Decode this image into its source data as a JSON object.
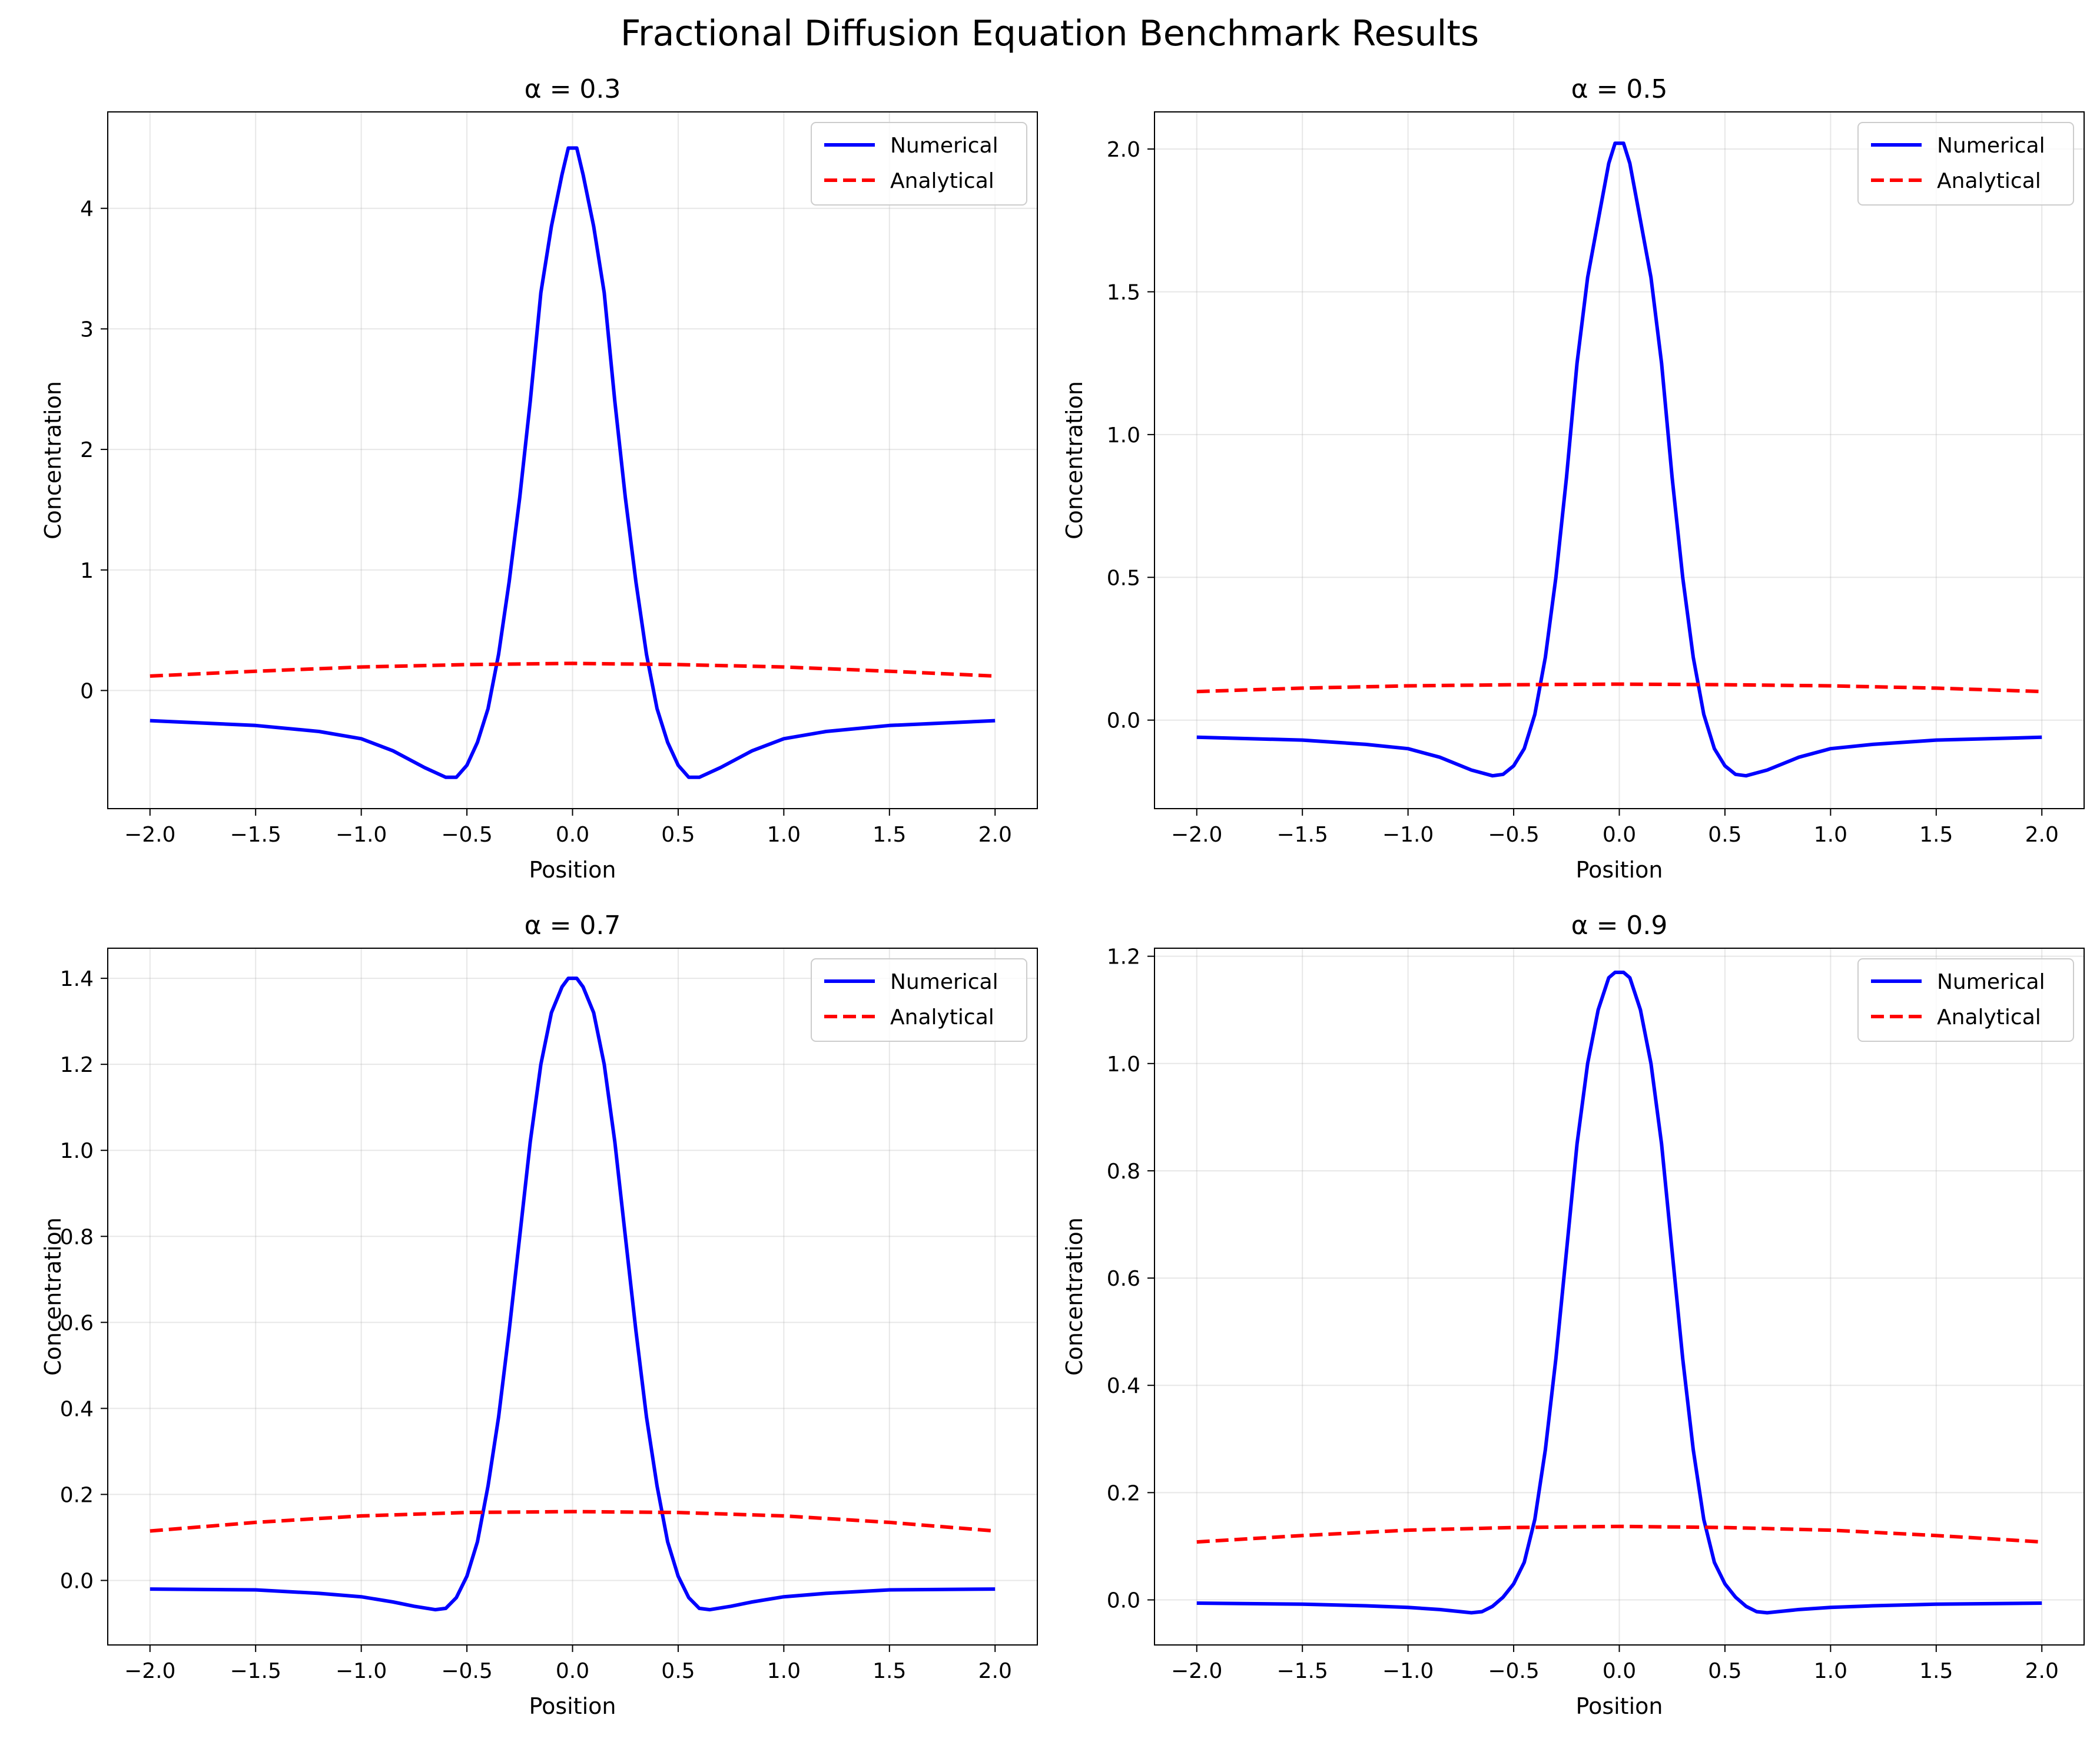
{
  "title": "Fractional Diffusion Equation Benchmark Results",
  "chart_data": [
    {
      "type": "line",
      "title": "α = 0.3",
      "xlabel": "Position",
      "ylabel": "Concentration",
      "xlim": [
        -2.2,
        2.2
      ],
      "ylim": [
        -0.98,
        4.8
      ],
      "xticks": [
        -2.0,
        -1.5,
        -1.0,
        -0.5,
        0.0,
        0.5,
        1.0,
        1.5,
        2.0
      ],
      "xtick_labels": [
        "−2.0",
        "−1.5",
        "−1.0",
        "−0.5",
        "0.0",
        "0.5",
        "1.0",
        "1.5",
        "2.0"
      ],
      "yticks": [
        0,
        1,
        2,
        3,
        4
      ],
      "ytick_labels": [
        "0",
        "1",
        "2",
        "3",
        "4"
      ],
      "grid": true,
      "legend": "top-right",
      "series": [
        {
          "name": "Numerical",
          "color": "#0000ff",
          "style": "solid",
          "x": [
            -2.0,
            -1.5,
            -1.2,
            -1.0,
            -0.85,
            -0.7,
            -0.6,
            -0.55,
            -0.5,
            -0.45,
            -0.4,
            -0.35,
            -0.3,
            -0.25,
            -0.2,
            -0.15,
            -0.1,
            -0.05,
            -0.02,
            0.02,
            0.05,
            0.1,
            0.15,
            0.2,
            0.25,
            0.3,
            0.35,
            0.4,
            0.45,
            0.5,
            0.55,
            0.6,
            0.7,
            0.85,
            1.0,
            1.2,
            1.5,
            2.0
          ],
          "y": [
            -0.25,
            -0.29,
            -0.34,
            -0.4,
            -0.5,
            -0.64,
            -0.72,
            -0.72,
            -0.62,
            -0.43,
            -0.15,
            0.3,
            0.9,
            1.6,
            2.4,
            3.3,
            3.85,
            4.28,
            4.5,
            4.5,
            4.28,
            3.85,
            3.3,
            2.4,
            1.6,
            0.9,
            0.3,
            -0.15,
            -0.43,
            -0.62,
            -0.72,
            -0.72,
            -0.64,
            -0.5,
            -0.4,
            -0.34,
            -0.29,
            -0.25
          ]
        },
        {
          "name": "Analytical",
          "color": "#ff0000",
          "style": "dashed",
          "x": [
            -2.0,
            -1.5,
            -1.0,
            -0.5,
            0.0,
            0.5,
            1.0,
            1.5,
            2.0
          ],
          "y": [
            0.12,
            0.16,
            0.195,
            0.215,
            0.225,
            0.215,
            0.195,
            0.16,
            0.12
          ]
        }
      ]
    },
    {
      "type": "line",
      "title": "α = 0.5",
      "xlabel": "Position",
      "ylabel": "Concentration",
      "xlim": [
        -2.2,
        2.2
      ],
      "ylim": [
        -0.31,
        2.13
      ],
      "xticks": [
        -2.0,
        -1.5,
        -1.0,
        -0.5,
        0.0,
        0.5,
        1.0,
        1.5,
        2.0
      ],
      "xtick_labels": [
        "−2.0",
        "−1.5",
        "−1.0",
        "−0.5",
        "0.0",
        "0.5",
        "1.0",
        "1.5",
        "2.0"
      ],
      "yticks": [
        0.0,
        0.5,
        1.0,
        1.5,
        2.0
      ],
      "ytick_labels": [
        "0.0",
        "0.5",
        "1.0",
        "1.5",
        "2.0"
      ],
      "grid": true,
      "legend": "top-right",
      "series": [
        {
          "name": "Numerical",
          "color": "#0000ff",
          "style": "solid",
          "x": [
            -2.0,
            -1.5,
            -1.2,
            -1.0,
            -0.85,
            -0.7,
            -0.6,
            -0.55,
            -0.5,
            -0.45,
            -0.4,
            -0.35,
            -0.3,
            -0.25,
            -0.2,
            -0.15,
            -0.1,
            -0.05,
            -0.02,
            0.02,
            0.05,
            0.1,
            0.15,
            0.2,
            0.25,
            0.3,
            0.35,
            0.4,
            0.45,
            0.5,
            0.55,
            0.6,
            0.7,
            0.85,
            1.0,
            1.2,
            1.5,
            2.0
          ],
          "y": [
            -0.06,
            -0.07,
            -0.085,
            -0.1,
            -0.13,
            -0.175,
            -0.195,
            -0.19,
            -0.16,
            -0.1,
            0.02,
            0.22,
            0.5,
            0.85,
            1.25,
            1.55,
            1.75,
            1.95,
            2.02,
            2.02,
            1.95,
            1.75,
            1.55,
            1.25,
            0.85,
            0.5,
            0.22,
            0.02,
            -0.1,
            -0.16,
            -0.19,
            -0.195,
            -0.175,
            -0.13,
            -0.1,
            -0.085,
            -0.07,
            -0.06
          ]
        },
        {
          "name": "Analytical",
          "color": "#ff0000",
          "style": "dashed",
          "x": [
            -2.0,
            -1.5,
            -1.0,
            -0.5,
            0.0,
            0.5,
            1.0,
            1.5,
            2.0
          ],
          "y": [
            0.1,
            0.112,
            0.12,
            0.124,
            0.126,
            0.124,
            0.12,
            0.112,
            0.1
          ]
        }
      ]
    },
    {
      "type": "line",
      "title": "α = 0.7",
      "xlabel": "Position",
      "ylabel": "Concentration",
      "xlim": [
        -2.2,
        2.2
      ],
      "ylim": [
        -0.15,
        1.47
      ],
      "xticks": [
        -2.0,
        -1.5,
        -1.0,
        -0.5,
        0.0,
        0.5,
        1.0,
        1.5,
        2.0
      ],
      "xtick_labels": [
        "−2.0",
        "−1.5",
        "−1.0",
        "−0.5",
        "0.0",
        "0.5",
        "1.0",
        "1.5",
        "2.0"
      ],
      "yticks": [
        0.0,
        0.2,
        0.4,
        0.6,
        0.8,
        1.0,
        1.2,
        1.4
      ],
      "ytick_labels": [
        "0.0",
        "0.2",
        "0.4",
        "0.6",
        "0.8",
        "1.0",
        "1.2",
        "1.4"
      ],
      "grid": true,
      "legend": "top-right",
      "series": [
        {
          "name": "Numerical",
          "color": "#0000ff",
          "style": "solid",
          "x": [
            -2.0,
            -1.5,
            -1.2,
            -1.0,
            -0.85,
            -0.75,
            -0.65,
            -0.6,
            -0.55,
            -0.5,
            -0.45,
            -0.4,
            -0.35,
            -0.3,
            -0.25,
            -0.2,
            -0.15,
            -0.1,
            -0.05,
            -0.02,
            0.02,
            0.05,
            0.1,
            0.15,
            0.2,
            0.25,
            0.3,
            0.35,
            0.4,
            0.45,
            0.5,
            0.55,
            0.6,
            0.65,
            0.75,
            0.85,
            1.0,
            1.2,
            1.5,
            2.0
          ],
          "y": [
            -0.02,
            -0.022,
            -0.03,
            -0.038,
            -0.05,
            -0.06,
            -0.068,
            -0.065,
            -0.04,
            0.01,
            0.09,
            0.22,
            0.38,
            0.58,
            0.8,
            1.02,
            1.2,
            1.32,
            1.38,
            1.4,
            1.4,
            1.38,
            1.32,
            1.2,
            1.02,
            0.8,
            0.58,
            0.38,
            0.22,
            0.09,
            0.01,
            -0.04,
            -0.065,
            -0.068,
            -0.06,
            -0.05,
            -0.038,
            -0.03,
            -0.022,
            -0.02
          ]
        },
        {
          "name": "Analytical",
          "color": "#ff0000",
          "style": "dashed",
          "x": [
            -2.0,
            -1.5,
            -1.0,
            -0.5,
            0.0,
            0.5,
            1.0,
            1.5,
            2.0
          ],
          "y": [
            0.115,
            0.135,
            0.15,
            0.158,
            0.16,
            0.158,
            0.15,
            0.135,
            0.115
          ]
        }
      ]
    },
    {
      "type": "line",
      "title": "α = 0.9",
      "xlabel": "Position",
      "ylabel": "Concentration",
      "xlim": [
        -2.2,
        2.2
      ],
      "ylim": [
        -0.084,
        1.215
      ],
      "xticks": [
        -2.0,
        -1.5,
        -1.0,
        -0.5,
        0.0,
        0.5,
        1.0,
        1.5,
        2.0
      ],
      "xtick_labels": [
        "−2.0",
        "−1.5",
        "−1.0",
        "−0.5",
        "0.0",
        "0.5",
        "1.0",
        "1.5",
        "2.0"
      ],
      "yticks": [
        0.0,
        0.2,
        0.4,
        0.6,
        0.8,
        1.0,
        1.2
      ],
      "ytick_labels": [
        "0.0",
        "0.2",
        "0.4",
        "0.6",
        "0.8",
        "1.0",
        "1.2"
      ],
      "grid": true,
      "legend": "top-right",
      "series": [
        {
          "name": "Numerical",
          "color": "#0000ff",
          "style": "solid",
          "x": [
            -2.0,
            -1.5,
            -1.2,
            -1.0,
            -0.85,
            -0.75,
            -0.7,
            -0.65,
            -0.6,
            -0.55,
            -0.5,
            -0.45,
            -0.4,
            -0.35,
            -0.3,
            -0.25,
            -0.2,
            -0.15,
            -0.1,
            -0.05,
            -0.02,
            0.02,
            0.05,
            0.1,
            0.15,
            0.2,
            0.25,
            0.3,
            0.35,
            0.4,
            0.45,
            0.5,
            0.55,
            0.6,
            0.65,
            0.7,
            0.75,
            0.85,
            1.0,
            1.2,
            1.5,
            2.0
          ],
          "y": [
            -0.006,
            -0.008,
            -0.011,
            -0.014,
            -0.018,
            -0.022,
            -0.024,
            -0.022,
            -0.012,
            0.005,
            0.03,
            0.07,
            0.15,
            0.28,
            0.45,
            0.65,
            0.85,
            1.0,
            1.1,
            1.16,
            1.17,
            1.17,
            1.16,
            1.1,
            1.0,
            0.85,
            0.65,
            0.45,
            0.28,
            0.15,
            0.07,
            0.03,
            0.005,
            -0.012,
            -0.022,
            -0.024,
            -0.022,
            -0.018,
            -0.014,
            -0.011,
            -0.008,
            -0.006
          ]
        },
        {
          "name": "Analytical",
          "color": "#ff0000",
          "style": "dashed",
          "x": [
            -2.0,
            -1.5,
            -1.0,
            -0.5,
            0.0,
            0.5,
            1.0,
            1.5,
            2.0
          ],
          "y": [
            0.108,
            0.12,
            0.13,
            0.135,
            0.137,
            0.135,
            0.13,
            0.12,
            0.108
          ]
        }
      ]
    }
  ]
}
